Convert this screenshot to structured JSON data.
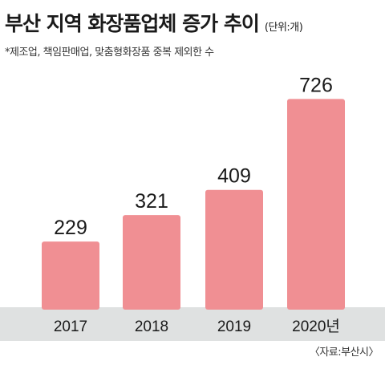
{
  "title": "부산 지역 화장품업체 증가 추이",
  "unit": "(단위:개)",
  "subtitle": "*제조업, 책임판매업, 맞춤형화장품 중복 제외한 수",
  "source": "〈자료:부산시〉",
  "colors": {
    "bar": "#f08f93",
    "axis_band": "#dfe1e1",
    "text": "#1a1a1a"
  },
  "chart_data": {
    "type": "bar",
    "categories": [
      "2017",
      "2018",
      "2019",
      "2020년"
    ],
    "values": [
      229,
      321,
      409,
      726
    ],
    "data_labels": [
      "229",
      "321",
      "409",
      "726"
    ],
    "title": "부산 지역 화장품업체 증가 추이",
    "xlabel": "",
    "ylabel": "",
    "ylim": [
      0,
      780
    ],
    "grid": false,
    "legend": "none"
  }
}
